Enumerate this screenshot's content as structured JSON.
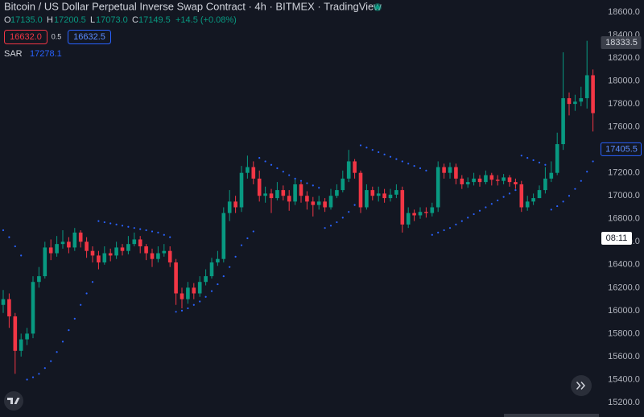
{
  "chart_data": {
    "type": "candlestick",
    "title": "Bitcoin / US Dollar Perpetual Inverse Swap Contract · 4h · BITMEX · TradingView",
    "legend": {
      "o_label": "O",
      "o": "17135.0",
      "h_label": "H",
      "h": "17200.5",
      "l_label": "L",
      "l": "17073.0",
      "c_label": "C",
      "c": "17149.5",
      "change": "+14.5 (+0.08%)",
      "bid": "16632.0",
      "spread": "0.5",
      "ask": "16632.5",
      "sar_value": "17278.1"
    },
    "up_color": "#089981",
    "down_color": "#f23645",
    "open": [
      16050,
      16100,
      15950,
      15650,
      15750,
      15800,
      16250,
      16300,
      16550,
      16500,
      16580,
      16600,
      16550,
      16680,
      16600,
      16520,
      16480,
      16420,
      16500,
      16480,
      16550,
      16520,
      16580,
      16620,
      16560,
      16500,
      16450,
      16500,
      16520,
      16420,
      16150,
      16100,
      16200,
      16150,
      16250,
      16300,
      16420,
      16450,
      16850,
      16950,
      16900,
      17200,
      17250,
      17150,
      17000,
      17020,
      16980,
      17050,
      17000,
      16950,
      17100,
      17000,
      16950,
      16920,
      16950,
      16900,
      17000,
      17050,
      17150,
      17300,
      17200,
      16900,
      17050,
      17000,
      17020,
      16980,
      17010,
      17050,
      16750,
      16850,
      16830,
      16860,
      16850,
      16900,
      17250,
      17200,
      17250,
      17150,
      17100,
      17120,
      17150,
      17120,
      17180,
      17140,
      17130,
      17160,
      17120,
      17100,
      16900,
      16950,
      16980,
      17050,
      17150,
      17200,
      17450,
      17850,
      17800,
      17820,
      17850,
      18050
    ],
    "high": [
      16180,
      16150,
      15980,
      15800,
      15850,
      16300,
      16380,
      16600,
      16620,
      16650,
      16700,
      16640,
      16720,
      16700,
      16640,
      16560,
      16520,
      16560,
      16540,
      16600,
      16580,
      16650,
      16680,
      16650,
      16580,
      16540,
      16560,
      16580,
      16560,
      16450,
      16200,
      16250,
      16240,
      16300,
      16360,
      16460,
      16520,
      16900,
      17050,
      17000,
      17260,
      17350,
      17300,
      17220,
      17080,
      17060,
      17120,
      17090,
      17050,
      17150,
      17120,
      17040,
      16990,
      17000,
      16980,
      17060,
      17100,
      17220,
      17400,
      17320,
      17220,
      17100,
      17080,
      17080,
      17060,
      17060,
      17100,
      17080,
      16900,
      16880,
      16900,
      16900,
      16940,
      17300,
      17280,
      17290,
      17280,
      17180,
      17160,
      17200,
      17180,
      17220,
      17200,
      17180,
      17190,
      17180,
      17150,
      17130,
      17000,
      17020,
      17090,
      17250,
      17300,
      17550,
      18250,
      17900,
      17880,
      17950,
      18350,
      18100
    ],
    "low": [
      15980,
      15850,
      15450,
      15600,
      15700,
      15760,
      16200,
      16280,
      16440,
      16470,
      16540,
      16500,
      16520,
      16550,
      16460,
      16420,
      16360,
      16400,
      16430,
      16450,
      16480,
      16490,
      16560,
      16500,
      16440,
      16380,
      16420,
      16470,
      16380,
      16050,
      16020,
      16060,
      16100,
      16120,
      16220,
      16280,
      16390,
      16420,
      16780,
      16850,
      16860,
      17150,
      17100,
      16950,
      16940,
      16850,
      16960,
      16960,
      16870,
      16920,
      16940,
      16880,
      16820,
      16880,
      16860,
      16880,
      16980,
      17030,
      17120,
      17150,
      16850,
      16880,
      16960,
      16950,
      16940,
      16950,
      16980,
      16680,
      16720,
      16780,
      16800,
      16810,
      16820,
      16860,
      17150,
      17150,
      17100,
      17060,
      17070,
      17090,
      17080,
      17100,
      17090,
      17090,
      17100,
      17080,
      17060,
      16860,
      16870,
      16920,
      16980,
      17020,
      17120,
      17180,
      17400,
      17700,
      17740,
      17780,
      17760,
      17560
    ],
    "close": [
      16100,
      15950,
      15650,
      15750,
      15800,
      16250,
      16300,
      16550,
      16500,
      16580,
      16600,
      16550,
      16680,
      16600,
      16520,
      16480,
      16420,
      16500,
      16480,
      16550,
      16520,
      16580,
      16620,
      16560,
      16500,
      16450,
      16500,
      16520,
      16420,
      16150,
      16100,
      16200,
      16150,
      16250,
      16300,
      16420,
      16450,
      16850,
      16950,
      16900,
      17200,
      17250,
      17150,
      17000,
      17020,
      16980,
      17050,
      17000,
      16950,
      17100,
      17000,
      16950,
      16920,
      16950,
      16900,
      17000,
      17050,
      17150,
      17300,
      17200,
      16900,
      17050,
      17000,
      17020,
      16980,
      17010,
      17050,
      16750,
      16850,
      16830,
      16860,
      16850,
      16900,
      17250,
      17200,
      17250,
      17150,
      17100,
      17120,
      17150,
      17120,
      17180,
      17140,
      17130,
      17160,
      17120,
      17100,
      16900,
      16950,
      16980,
      17050,
      17150,
      17200,
      17450,
      17850,
      17800,
      17820,
      17850,
      18050,
      17720
    ],
    "sar": {
      "name": "SAR",
      "color": "#2962ff",
      "values": [
        16700,
        16640,
        16560,
        16480,
        15400,
        15420,
        15450,
        15500,
        15560,
        15640,
        15730,
        15830,
        15930,
        16050,
        16150,
        16250,
        16780,
        16770,
        16760,
        16750,
        16740,
        16730,
        16720,
        16710,
        16700,
        16690,
        16680,
        16660,
        16640,
        15990,
        16000,
        16020,
        16050,
        16080,
        16120,
        16170,
        16230,
        16300,
        16380,
        16470,
        16570,
        16630,
        16690,
        17330,
        17300,
        17270,
        17240,
        17210,
        17180,
        17150,
        17130,
        17110,
        17090,
        17070,
        16720,
        16740,
        16770,
        16810,
        16860,
        16920,
        17440,
        17420,
        17400,
        17380,
        17360,
        17340,
        17320,
        17300,
        17280,
        17260,
        17240,
        17220,
        16660,
        16680,
        16700,
        16720,
        16750,
        16780,
        16810,
        16840,
        16870,
        16900,
        16930,
        16960,
        16990,
        17020,
        17050,
        17350,
        17330,
        17310,
        17290,
        17270,
        16880,
        16910,
        16950,
        17000,
        17060,
        17130,
        17210,
        17300
      ]
    },
    "ylim": [
      15200,
      18600
    ],
    "yticks": [
      {
        "value": 15200,
        "label": "15200.0"
      },
      {
        "value": 15400,
        "label": "15400.0"
      },
      {
        "value": 15600,
        "label": "15600.0"
      },
      {
        "value": 15800,
        "label": "15800.0"
      },
      {
        "value": 16000,
        "label": "16000.0"
      },
      {
        "value": 16200,
        "label": "16200.0"
      },
      {
        "value": 16400,
        "label": "16400.0"
      },
      {
        "value": 16600,
        "label": "16600.0"
      },
      {
        "value": 16800,
        "label": "16800.0"
      },
      {
        "value": 17000,
        "label": "17000.0"
      },
      {
        "value": 17200,
        "label": "17200.0"
      },
      {
        "value": 17400,
        "label": "17400.0"
      },
      {
        "value": 17600,
        "label": "17600.0"
      },
      {
        "value": 17800,
        "label": "17800.0"
      },
      {
        "value": 18000,
        "label": "18000.0"
      },
      {
        "value": 18200,
        "label": "18200.0"
      },
      {
        "value": 18400,
        "label": "18400.0"
      },
      {
        "value": 18600,
        "label": "18600.0"
      }
    ],
    "price_tags": [
      18333.5,
      17405.5
    ],
    "countdown": "08:11",
    "grid": false
  }
}
